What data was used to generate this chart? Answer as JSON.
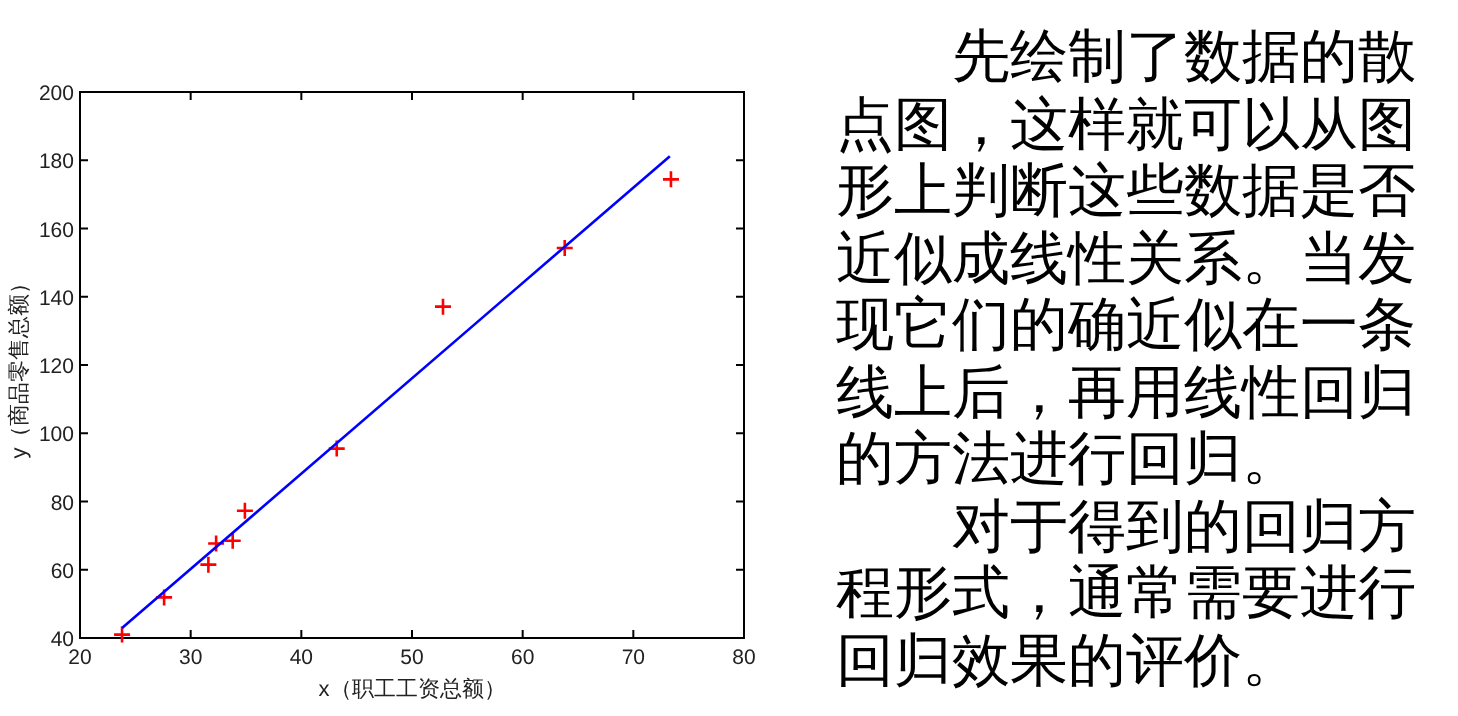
{
  "chart_data": [
    {
      "type": "scatter",
      "xlabel": "x（职工工资总额）",
      "ylabel": "y（商品零售总额）",
      "xlim": [
        20,
        80
      ],
      "ylim": [
        40,
        200
      ],
      "xticks": [
        20,
        30,
        40,
        50,
        60,
        70,
        80
      ],
      "yticks": [
        40,
        60,
        80,
        100,
        120,
        140,
        160,
        180,
        200
      ],
      "grid": false,
      "series": [
        {
          "type": "scatter",
          "color": "#ff0000",
          "marker": "cross",
          "x": [
            23.8,
            27.6,
            31.6,
            32.3,
            33.8,
            34.9,
            43.2,
            52.8,
            63.8,
            73.4
          ],
          "values": [
            41.0,
            51.9,
            61.5,
            67.7,
            68.5,
            77.3,
            95.5,
            137.1,
            154.3,
            174.4
          ]
        },
        {
          "type": "line",
          "color": "#0000ff",
          "line_style": "solid",
          "marker": "none",
          "x": [
            23.8,
            73.3
          ],
          "values": [
            42.9,
            181.2
          ]
        }
      ]
    },
    {
      "type": "other",
      "annotations": [
        "先绘制了数据的散点图，这样就可以从图形上判断这些数据是否近似成线性关系。当发现它们的确近似在一条线上后，再用线性回归的方法进行回归。",
        "对于得到的回归方程形式，通常需要进行回归效果的评价。"
      ]
    }
  ]
}
